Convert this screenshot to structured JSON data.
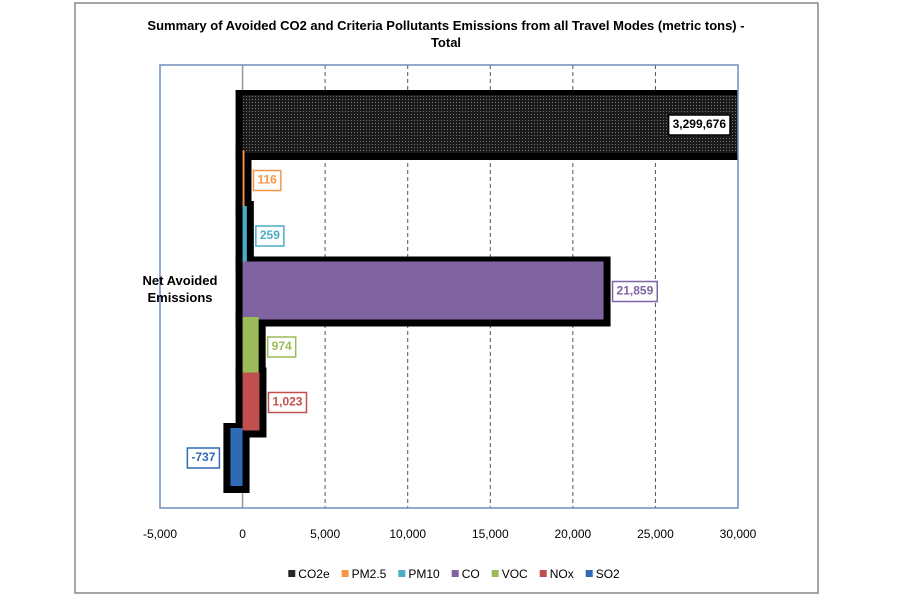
{
  "chart_data": {
    "type": "hbar",
    "title": "Summary of Avoided CO2 and Criteria Pollutants Emissions from all Travel Modes (metric tons) - Total",
    "categories": [
      "Net Avoided Emissions"
    ],
    "series": [
      {
        "name": "CO2e",
        "color": "#262626",
        "values": [
          3299676
        ],
        "value_labels": [
          "3,299,676"
        ]
      },
      {
        "name": "PM2.5",
        "color": "#f79646",
        "values": [
          116
        ],
        "value_labels": [
          "116"
        ]
      },
      {
        "name": "PM10",
        "color": "#4bacc6",
        "values": [
          259
        ],
        "value_labels": [
          "259"
        ]
      },
      {
        "name": "CO",
        "color": "#8064a2",
        "values": [
          21859
        ],
        "value_labels": [
          "21,859"
        ]
      },
      {
        "name": "VOC",
        "color": "#9bbb59",
        "values": [
          974
        ],
        "value_labels": [
          "974"
        ]
      },
      {
        "name": "NOx",
        "color": "#c0504d",
        "values": [
          1023
        ],
        "value_labels": [
          "1,023"
        ]
      },
      {
        "name": "SO2",
        "color": "#2f6bb5",
        "values": [
          -737
        ],
        "value_labels": [
          "-737"
        ]
      }
    ],
    "xlim": [
      -5000,
      30000
    ],
    "xticks": [
      {
        "value": -5000,
        "label": "-5,000"
      },
      0,
      {
        "value": 5000,
        "label": "5,000"
      },
      {
        "value": 10000,
        "label": "10,000"
      },
      {
        "value": 15000,
        "label": "15,000"
      },
      {
        "value": 20000,
        "label": "20,000"
      },
      {
        "value": 25000,
        "label": "25,000"
      },
      {
        "value": 30000,
        "label": "30,000"
      }
    ],
    "grid": true,
    "legend": "bottom"
  }
}
